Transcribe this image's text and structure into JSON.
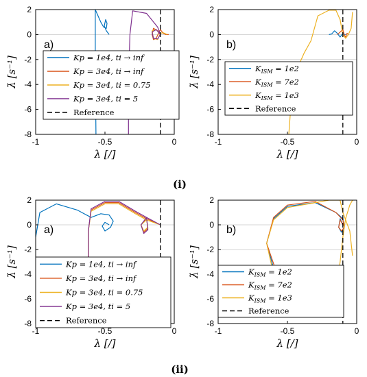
{
  "figure_captions": [
    "(i)",
    "(ii)"
  ],
  "chart_data": [
    {
      "id": "i-a",
      "type": "line",
      "panel_letter": "a)",
      "xlabel": "λ [/]",
      "ylabel": "λ̇ [s⁻¹]",
      "xlim": [
        -1,
        0
      ],
      "ylim": [
        -8,
        2
      ],
      "xticks": [
        "-1",
        "-0.5",
        "0"
      ],
      "yticks": [
        "2",
        "0",
        "-2",
        "-4",
        "-6",
        "-8"
      ],
      "legend_position": "center-left",
      "series": [
        {
          "name": "Kp = 1e4, ti → inf",
          "color": "#0072BD",
          "x": [
            -0.47,
            -0.49,
            -0.505,
            -0.495,
            -0.485,
            -0.49,
            -0.51,
            -0.53,
            -0.55,
            -0.57,
            -0.57,
            -0.565
          ],
          "y": [
            0.0,
            0.3,
            0.7,
            1.2,
            0.9,
            0.5,
            0.6,
            1.0,
            1.5,
            2.0,
            -2.0,
            -8.0
          ]
        },
        {
          "name": "Kp = 3e4, ti → inf",
          "color": "#D95319",
          "x": [
            -0.1,
            -0.12,
            -0.15,
            -0.16,
            -0.15,
            -0.13,
            -0.11,
            -0.1,
            -0.08,
            -0.06,
            -0.04
          ],
          "y": [
            0.0,
            0.3,
            0.5,
            0.0,
            -0.4,
            -0.3,
            0.2,
            0.4,
            0.1,
            0.0,
            0.0
          ]
        },
        {
          "name": "Kp = 3e4, ti = 0.75",
          "color": "#EDB120",
          "x": [
            -0.1,
            -0.13,
            -0.16,
            -0.15,
            -0.12,
            -0.1,
            -0.08,
            -0.05
          ],
          "y": [
            0.0,
            0.4,
            0.3,
            -0.3,
            -0.4,
            0.1,
            0.15,
            0.0
          ]
        },
        {
          "name": "Kp = 3e4, ti = 5",
          "color": "#7E2F8E",
          "x": [
            -0.1,
            -0.13,
            -0.16,
            -0.15,
            -0.12,
            -0.1,
            -0.12,
            -0.2,
            -0.3,
            -0.32,
            -0.33,
            -0.33
          ],
          "y": [
            0.0,
            0.4,
            0.2,
            -0.3,
            -0.35,
            0.0,
            0.6,
            1.7,
            1.9,
            0.0,
            -4.0,
            -8.0
          ]
        }
      ],
      "reference": {
        "name": "Reference",
        "x": -0.1
      }
    },
    {
      "id": "i-b",
      "type": "line",
      "panel_letter": "b)",
      "xlabel": "λ [/]",
      "ylabel": "λ̇ [s⁻¹]",
      "xlim": [
        -1,
        0
      ],
      "ylim": [
        -8,
        2
      ],
      "xticks": [
        "-1",
        "-0.5",
        "0"
      ],
      "yticks": [
        "2",
        "0",
        "-2",
        "-4",
        "-6",
        "-8"
      ],
      "legend_position": "center",
      "series": [
        {
          "name": "K_ISM = 1e2",
          "color": "#0072BD",
          "x": [
            -0.2,
            -0.18,
            -0.16,
            -0.14,
            -0.12,
            -0.1,
            -0.09,
            -0.08
          ],
          "y": [
            0.0,
            0.05,
            0.3,
            0.1,
            -0.2,
            0.1,
            0.0,
            0.0
          ]
        },
        {
          "name": "K_ISM = 7e2",
          "color": "#D95319",
          "x": [
            -0.14,
            -0.12,
            -0.1,
            -0.09,
            -0.08,
            -0.07,
            -0.06
          ],
          "y": [
            0.0,
            0.2,
            0.4,
            0.0,
            -0.2,
            0.1,
            0.0
          ]
        },
        {
          "name": "K_ISM = 1e3",
          "color": "#EDB120",
          "x": [
            -0.49,
            -0.48,
            -0.46,
            -0.42,
            -0.38,
            -0.33,
            -0.28,
            -0.2,
            -0.15,
            -0.12,
            -0.1,
            -0.08,
            -0.06,
            -0.04,
            -0.03
          ],
          "y": [
            -8.0,
            -6.5,
            -5.0,
            -2.5,
            -1.5,
            -0.5,
            1.5,
            1.95,
            1.95,
            1.2,
            0.0,
            -0.3,
            0.0,
            0.5,
            1.8
          ]
        }
      ],
      "reference": {
        "name": "Reference",
        "x": -0.1
      }
    },
    {
      "id": "ii-a",
      "type": "line",
      "panel_letter": "a)",
      "xlabel": "λ [/]",
      "ylabel": "λ̇ [s⁻¹]",
      "xlim": [
        -1,
        0
      ],
      "ylim": [
        -8,
        2
      ],
      "xticks": [
        "-1",
        "-0.5",
        "0"
      ],
      "yticks": [
        "2",
        "0",
        "-2",
        "-4",
        "-6",
        "-8"
      ],
      "legend_position": "bottom-left",
      "series": [
        {
          "name": "Kp = 1e4, ti → inf",
          "color": "#0072BD",
          "x": [
            -0.47,
            -0.5,
            -0.52,
            -0.5,
            -0.46,
            -0.44,
            -0.47,
            -0.53,
            -0.6,
            -0.7,
            -0.85,
            -0.97,
            -1.0
          ],
          "y": [
            0.0,
            0.2,
            -0.1,
            -0.5,
            -0.2,
            0.3,
            0.8,
            0.9,
            0.6,
            1.2,
            1.7,
            1.0,
            -1.0
          ]
        },
        {
          "name": "Kp = 3e4, ti → inf",
          "color": "#D95319",
          "x": [
            -0.1,
            -0.2,
            -0.24,
            -0.22,
            -0.19,
            -0.2,
            -0.28,
            -0.4,
            -0.5,
            -0.6,
            -0.62,
            -0.62
          ],
          "y": [
            0.0,
            0.5,
            0.0,
            -0.6,
            -0.3,
            0.5,
            1.0,
            1.8,
            1.8,
            1.2,
            -0.5,
            -3.3
          ]
        },
        {
          "name": "Kp = 3e4, ti = 0.75",
          "color": "#EDB120",
          "x": [
            -0.1,
            -0.2,
            -0.24,
            -0.22,
            -0.19,
            -0.2,
            -0.28,
            -0.4,
            -0.5,
            -0.6,
            -0.62,
            -0.62
          ],
          "y": [
            0.0,
            0.4,
            0.0,
            -0.5,
            -0.2,
            0.4,
            0.9,
            1.7,
            1.7,
            1.1,
            -0.5,
            -3.3
          ]
        },
        {
          "name": "Kp = 3e4, ti = 5",
          "color": "#7E2F8E",
          "x": [
            -0.1,
            -0.2,
            -0.24,
            -0.22,
            -0.19,
            -0.2,
            -0.28,
            -0.4,
            -0.5,
            -0.6,
            -0.62,
            -0.62
          ],
          "y": [
            0.0,
            0.6,
            0.0,
            -0.7,
            -0.4,
            0.6,
            1.1,
            1.9,
            1.9,
            1.3,
            -0.5,
            -3.3
          ]
        }
      ],
      "reference": {
        "name": "Reference",
        "x": -0.1
      }
    },
    {
      "id": "ii-b",
      "type": "line",
      "panel_letter": "b)",
      "xlabel": "λ [/]",
      "ylabel": "λ̇ [s⁻¹]",
      "xlim": [
        -1,
        0
      ],
      "ylim": [
        -8,
        2
      ],
      "xticks": [
        "-1",
        "-0.5",
        "0"
      ],
      "yticks": [
        "2",
        "0",
        "-2",
        "-4",
        "-6",
        "-8"
      ],
      "legend_position": "bottom-left",
      "series": [
        {
          "name": "K_ISM = 1e2",
          "color": "#0072BD",
          "x": [
            -0.1,
            -0.12,
            -0.13,
            -0.11,
            -0.09,
            -0.1,
            -0.15,
            -0.3,
            -0.5,
            -0.6,
            -0.65,
            -0.6,
            -0.5
          ],
          "y": [
            0.0,
            0.5,
            -0.2,
            -0.6,
            -0.2,
            0.5,
            1.0,
            1.8,
            1.5,
            0.5,
            -1.5,
            -3.5,
            -4.8
          ]
        },
        {
          "name": "K_ISM = 7e2",
          "color": "#D95319",
          "x": [
            -0.1,
            -0.12,
            -0.13,
            -0.11,
            -0.09,
            -0.1,
            -0.15,
            -0.3,
            -0.5,
            -0.6,
            -0.65,
            -0.58,
            -0.45,
            -0.3
          ],
          "y": [
            0.0,
            0.4,
            -0.2,
            -0.5,
            -0.2,
            0.4,
            1.0,
            1.9,
            1.6,
            0.6,
            -1.5,
            -3.8,
            -5.5,
            -6.5
          ]
        },
        {
          "name": "K_ISM = 1e3",
          "color": "#EDB120",
          "x": [
            -0.03,
            -0.05,
            -0.1,
            -0.12,
            -0.2,
            -0.3,
            -0.5,
            -0.6,
            -0.65,
            -0.6,
            -0.45,
            -0.3,
            -0.22,
            -0.15,
            -0.12,
            -0.1,
            -0.08,
            -0.05,
            -0.03
          ],
          "y": [
            -2.5,
            -0.5,
            1.0,
            2.0,
            2.0,
            1.8,
            1.4,
            0.4,
            -1.5,
            -4.0,
            -5.8,
            -6.6,
            -6.5,
            -5.5,
            -3.0,
            -1.0,
            0.5,
            1.6,
            2.0
          ]
        }
      ],
      "reference": {
        "name": "Reference",
        "x": -0.1
      }
    }
  ]
}
